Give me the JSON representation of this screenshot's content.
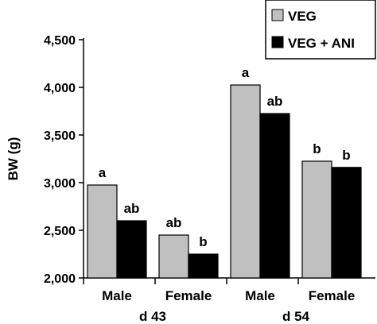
{
  "chart_data": {
    "type": "bar",
    "ylabel": "BW (g)",
    "ylim": [
      2000,
      4500
    ],
    "yticks": [
      2000,
      2500,
      3000,
      3500,
      4000,
      4500
    ],
    "ytick_labels": [
      "2,000",
      "2,500",
      "3,000",
      "3,500",
      "4,000",
      "4,500"
    ],
    "grid": false,
    "legend_position": "top-right",
    "categories": [
      "Male",
      "Female",
      "Male",
      "Female"
    ],
    "groups": [
      {
        "label": "d 43",
        "categories": [
          0,
          1
        ]
      },
      {
        "label": "d 54",
        "categories": [
          2,
          3
        ]
      }
    ],
    "series": [
      {
        "name": "VEG",
        "color": "#c0c0c0",
        "values": [
          2975,
          2450,
          4025,
          3225
        ],
        "labels": [
          "a",
          "ab",
          "a",
          "b"
        ]
      },
      {
        "name": "VEG + ANI",
        "color": "#000000",
        "values": [
          2600,
          2250,
          3725,
          3160
        ],
        "labels": [
          "ab",
          "b",
          "ab",
          "b"
        ]
      }
    ]
  }
}
